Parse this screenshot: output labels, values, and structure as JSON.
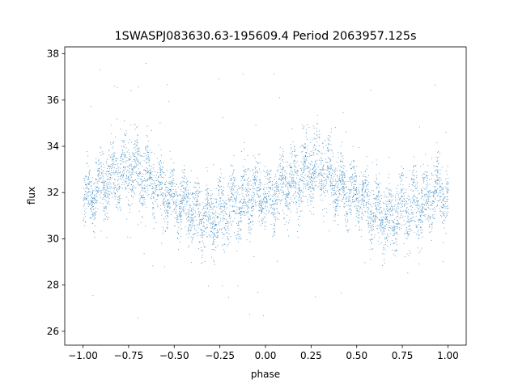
{
  "chart_data": {
    "type": "scatter",
    "title": "1SWASPJ083630.63-195609.4 Period 2063957.125s",
    "xlabel": "phase",
    "ylabel": "flux",
    "xlim": [
      -1.1,
      1.1
    ],
    "ylim": [
      25.4,
      38.3
    ],
    "grid": false,
    "legend": "none",
    "marker_color": "#1f77b4",
    "x_ticks": [
      {
        "value": -1.0,
        "label": "−1.00"
      },
      {
        "value": -0.75,
        "label": "−0.75"
      },
      {
        "value": -0.5,
        "label": "−0.50"
      },
      {
        "value": -0.25,
        "label": "−0.25"
      },
      {
        "value": 0.0,
        "label": "0.00"
      },
      {
        "value": 0.25,
        "label": "0.25"
      },
      {
        "value": 0.5,
        "label": "0.50"
      },
      {
        "value": 0.75,
        "label": "0.75"
      },
      {
        "value": 1.0,
        "label": "1.00"
      }
    ],
    "y_ticks": [
      {
        "value": 26,
        "label": "26"
      },
      {
        "value": 28,
        "label": "28"
      },
      {
        "value": 30,
        "label": "30"
      },
      {
        "value": 32,
        "label": "32"
      },
      {
        "value": 34,
        "label": "34"
      },
      {
        "value": 36,
        "label": "36"
      },
      {
        "value": 38,
        "label": "38"
      }
    ],
    "phase_profile": {
      "phase": [
        0.0,
        0.05,
        0.1,
        0.15,
        0.2,
        0.25,
        0.3,
        0.35,
        0.4,
        0.45,
        0.5,
        0.55,
        0.6,
        0.65,
        0.7,
        0.75,
        0.8,
        0.85,
        0.9,
        0.95,
        1.0
      ],
      "mean_flux": [
        31.6,
        31.9,
        32.4,
        32.6,
        32.8,
        33.1,
        33.0,
        32.7,
        32.3,
        32.0,
        31.8,
        31.5,
        31.2,
        31.0,
        30.9,
        31.2,
        31.4,
        31.6,
        31.8,
        32.0,
        31.9
      ],
      "spread": [
        1.2,
        1.2,
        1.3,
        1.4,
        1.4,
        1.5,
        1.5,
        1.4,
        1.3,
        1.2,
        1.2,
        1.2,
        1.3,
        1.3,
        1.3,
        1.4,
        1.5,
        1.4,
        1.4,
        1.3,
        1.2
      ]
    },
    "outlier_range": [
      26.0,
      37.7
    ],
    "x_range_plotted": [
      -1.0,
      1.0
    ]
  }
}
